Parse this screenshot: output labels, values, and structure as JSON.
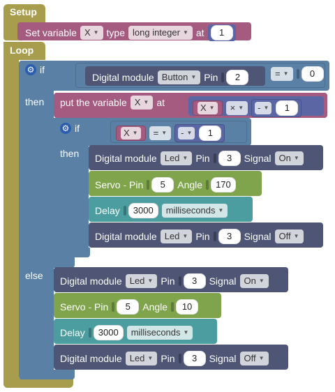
{
  "colors": {
    "setup_loop": "#a89d4d",
    "variable": "#a55b80",
    "if_block": "#5b80a5",
    "digital": "#4e5575",
    "servo": "#7fa44b",
    "delay": "#4b9da0",
    "math": "#5b67a5"
  },
  "setup": {
    "label": "Setup",
    "set_variable": {
      "prefix": "Set variable",
      "var": "X",
      "type_label": "type",
      "type_value": "long integer",
      "at_label": "at",
      "value": "1"
    }
  },
  "loop": {
    "label": "Loop",
    "if1": {
      "if_label": "if",
      "then_label": "then",
      "else_label": "else",
      "condition": {
        "module_label": "Digital module",
        "module_value": "Button",
        "pin_label": "Pin",
        "pin": "2",
        "op": "=",
        "compare": "0"
      },
      "then": {
        "put": {
          "label": "put the variable",
          "var": "X",
          "at_label": "at",
          "expr_var": "X",
          "expr_op": "×",
          "expr_neg": "-",
          "expr_num": "1"
        },
        "if2": {
          "if_label": "if",
          "then_label": "then",
          "condition": {
            "var": "X",
            "op": "=",
            "neg": "-",
            "num": "1"
          },
          "actions": [
            {
              "kind": "digital",
              "label": "Digital module",
              "module": "Led",
              "pin_label": "Pin",
              "pin": "3",
              "signal_label": "Signal",
              "signal": "On"
            },
            {
              "kind": "servo",
              "label": "Servo - Pin",
              "pin": "5",
              "angle_label": "Angle",
              "angle": "170"
            },
            {
              "kind": "delay",
              "label": "Delay",
              "value": "3000",
              "unit": "milliseconds"
            },
            {
              "kind": "digital",
              "label": "Digital module",
              "module": "Led",
              "pin_label": "Pin",
              "pin": "3",
              "signal_label": "Signal",
              "signal": "Off"
            }
          ]
        }
      },
      "else": [
        {
          "kind": "digital",
          "label": "Digital module",
          "module": "Led",
          "pin_label": "Pin",
          "pin": "3",
          "signal_label": "Signal",
          "signal": "On"
        },
        {
          "kind": "servo",
          "label": "Servo - Pin",
          "pin": "5",
          "angle_label": "Angle",
          "angle": "10"
        },
        {
          "kind": "delay",
          "label": "Delay",
          "value": "3000",
          "unit": "milliseconds"
        },
        {
          "kind": "digital",
          "label": "Digital module",
          "module": "Led",
          "pin_label": "Pin",
          "pin": "3",
          "signal_label": "Signal",
          "signal": "Off"
        }
      ]
    }
  }
}
